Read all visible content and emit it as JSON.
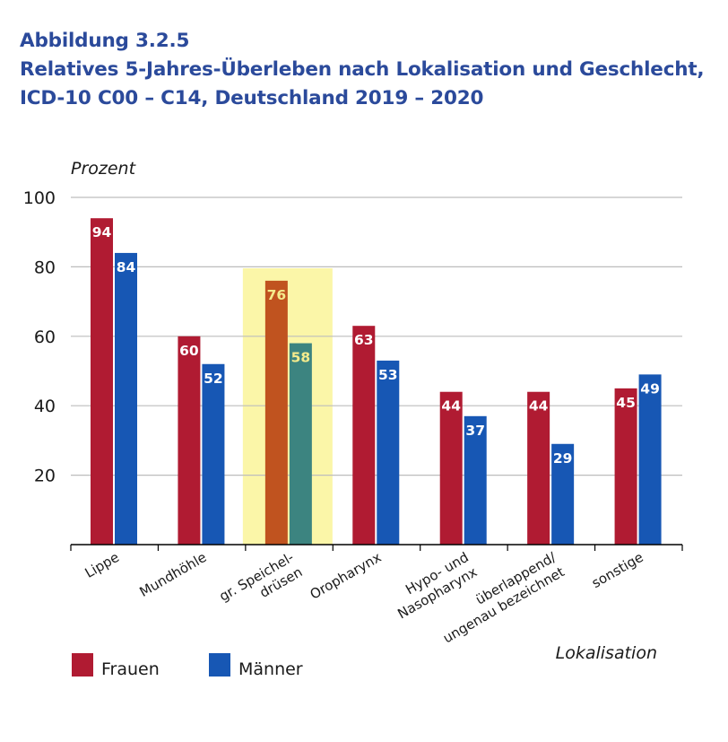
{
  "figure": {
    "label": "Abbildung 3.2.5",
    "title_line1": "Relatives 5-Jahres-Überleben nach Lokalisation und Geschlecht,",
    "title_line2": "ICD-10 C00 – C14, Deutschland 2019 – 2020"
  },
  "colors": {
    "frauen": "#b01b32",
    "maenner": "#1757b4",
    "frauen_highlight": "#c0531f",
    "maenner_highlight": "#3c8480",
    "highlight_band": "#fbf6a8",
    "highlight_label": "#f4eb8c",
    "gridline": "#bdbdbd",
    "heading": "#2b4a9b"
  },
  "chart_data": {
    "type": "bar",
    "ylabel": "Prozent",
    "xlabel": "Lokalisation",
    "ylim": [
      0,
      100
    ],
    "yticks": [
      20,
      40,
      60,
      80,
      100
    ],
    "grid": true,
    "legend_position": "bottom-left",
    "highlighted_category": "gr. Speichel-drüsen",
    "categories": [
      [
        "Lippe"
      ],
      [
        "Mundhöhle"
      ],
      [
        "gr. Speichel-",
        "drüsen"
      ],
      [
        "Oropharynx"
      ],
      [
        "Hypo- und",
        "Nasopharynx"
      ],
      [
        "überlappend/",
        "ungenau bezeichnet"
      ],
      [
        "sonstige"
      ]
    ],
    "series": [
      {
        "name": "Frauen",
        "values": [
          94,
          60,
          76,
          63,
          44,
          44,
          45
        ]
      },
      {
        "name": "Männer",
        "values": [
          84,
          52,
          58,
          53,
          37,
          29,
          49
        ]
      }
    ]
  }
}
